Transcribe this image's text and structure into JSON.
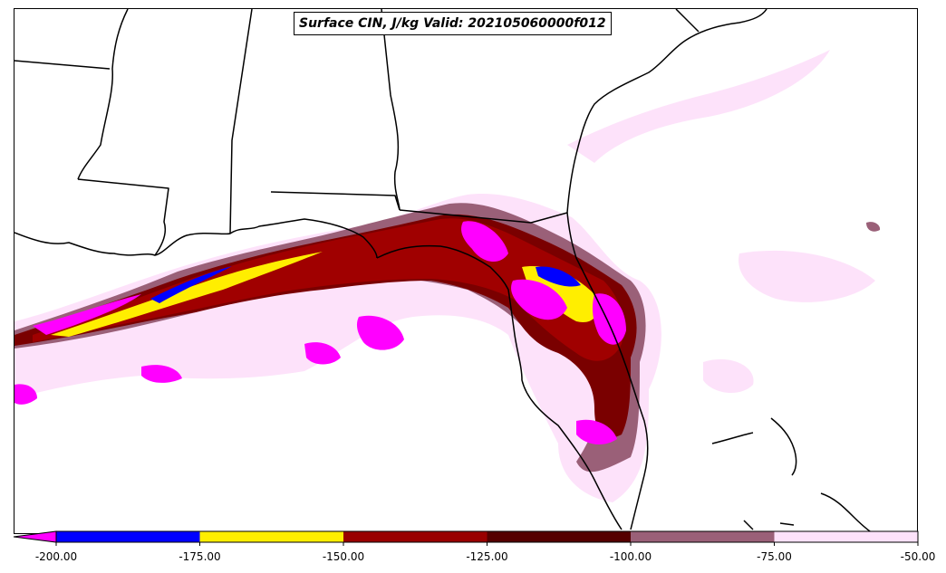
{
  "map": {
    "title": "Surface CIN, J/kg Valid: 202105060000f012",
    "field": "Surface CIN",
    "units": "J/kg",
    "valid": "202105060000f012",
    "region": "Southeastern United States / Gulf of Mexico / Florida"
  },
  "colorbar": {
    "levels": [
      -200,
      -175,
      -150,
      -125,
      -100,
      -75,
      -50
    ],
    "tick_labels": [
      "-200.00",
      "-175.00",
      "-150.00",
      "-125.00",
      "-100.00",
      "-75.00",
      "-50.00"
    ],
    "extend": "min",
    "under_color": "#ff00ff",
    "bins": [
      {
        "range": [
          -200,
          -175
        ],
        "color": "#0000ff"
      },
      {
        "range": [
          -175,
          -150
        ],
        "color": "#ffee00"
      },
      {
        "range": [
          -150,
          -125
        ],
        "color": "#990000"
      },
      {
        "range": [
          -125,
          -100
        ],
        "color": "#550000"
      },
      {
        "range": [
          -100,
          -75
        ],
        "color": "#9a6078"
      },
      {
        "range": [
          -75,
          -50
        ],
        "color": "#fde2fa"
      }
    ]
  },
  "colors": {
    "coast": "#000000",
    "lightest": "#fde2fa",
    "mauve": "#9a6078",
    "darkred": "#7a0000",
    "red": "#a00000",
    "yellow": "#ffee00",
    "blue": "#0000ff",
    "magenta": "#ff00ff"
  }
}
